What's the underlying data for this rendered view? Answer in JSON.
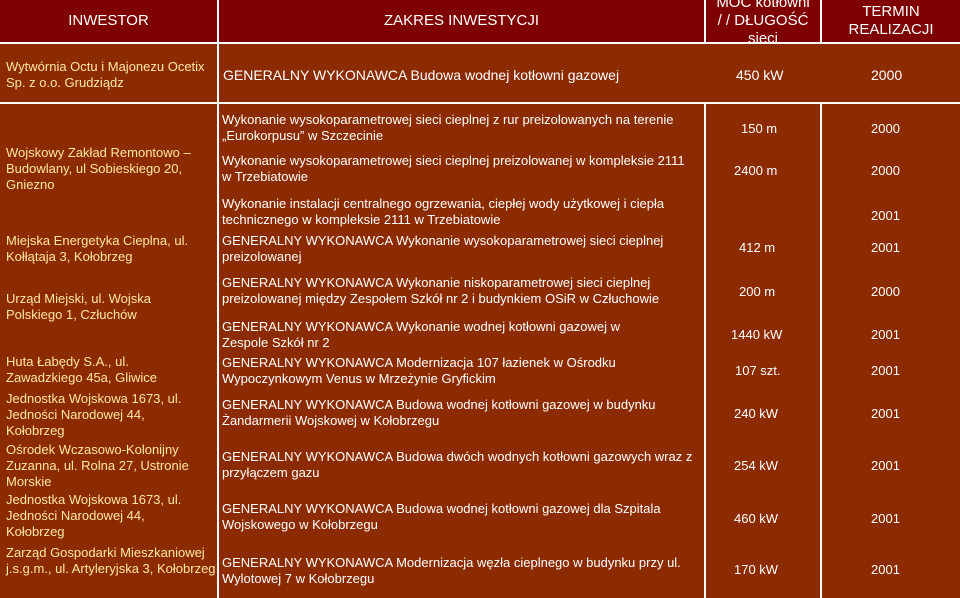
{
  "header": {
    "investor": "INWESTOR",
    "scope": "ZAKRES INWESTYCJI",
    "power_length": "MOC kotłowni / / DŁUGOŚĆ sieci",
    "date": "TERMIN REALIZACJI"
  },
  "top_row": {
    "investor": "Wytwórnia Octu i Majonezu Ocetix Sp. z o.o. Grudziądz",
    "scope": "GENERALNY WYKONAWCA Budowa wodnej kotłowni gazowej",
    "power": "450 kW",
    "year": "2000"
  },
  "investors": [
    "Wojskowy Zakład Remontowo – Budowlany, ul Sobieskiego 20, Gniezno",
    "Miejska Energetyka Cieplna, ul. Kołłątaja 3, Kołobrzeg",
    "Urząd Miejski, ul. Wojska Polskiego 1, Człuchów",
    "Huta Łabędy S.A., ul. Zawadzkiego 45a, Gliwice",
    "Jednostka Wojskowa 1673, ul. Jedności Narodowej 44, Kołobrzeg",
    "Ośrodek Wczasowo-Kolonijny Zuzanna, ul. Rolna 27, Ustronie Morskie",
    "Jednostka Wojskowa 1673, ul. Jedności Narodowej 44, Kołobrzeg",
    "Zarząd Gospodarki Mieszkaniowej j.s.g.m., ul. Artyleryjska 3, Kołobrzeg"
  ],
  "works": [
    "Wykonanie wysokoparametrowej sieci cieplnej z rur preizolowanych na terenie „Eurokorpusu” w Szczecinie",
    "Wykonanie wysokoparametrowej sieci cieplnej preizolowanej w kompleksie 2111 w Trzebiatowie",
    "Wykonanie instalacji centralnego ogrzewania, ciepłej wody użytkowej i ciepła technicznego w kompleksie 2111 w Trzebiatowie",
    "GENERALNY WYKONAWCA Wykonanie wysokoparametrowej sieci cieplnej preizolowanej",
    "GENERALNY WYKONAWCA Wykonanie niskoparametrowej sieci cieplnej preizolowanej między Zespołem Szkół nr 2 i budynkiem OSiR w Człuchowie",
    "GENERALNY WYKONAWCA Wykonanie wodnej kotłowni gazowej w Zespole Szkół nr 2",
    "GENERALNY WYKONAWCA Modernizacja 107 łazienek w Ośrodku Wypoczynkowym Venus w Mrzeżynie Gryfickim",
    "GENERALNY WYKONAWCA Budowa wodnej kotłowni gazowej w budynku Żandarmerii Wojskowej w Kołobrzegu",
    "GENERALNY WYKONAWCA Budowa dwóch wodnych kotłowni gazowych wraz z przyłączem gazu",
    "GENERALNY WYKONAWCA Budowa wodnej kotłowni gazowej dla Szpitala Wojskowego w Kołobrzegu",
    "GENERALNY WYKONAWCA Modernizacja węzła cieplnego w budynku przy ul. Wylotowej 7 w Kołobrzegu"
  ],
  "values": [
    {
      "power": "150 m",
      "year": "2000"
    },
    {
      "power": "2400 m",
      "year": "2000"
    },
    {
      "power": "",
      "year": "2001"
    },
    {
      "power": "412 m",
      "year": "2001"
    },
    {
      "power": "200 m",
      "year": "2000"
    },
    {
      "power": "1440 kW",
      "year": "2001"
    },
    {
      "power": "107 szt.",
      "year": "2001"
    },
    {
      "power": "240 kW",
      "year": "2001"
    },
    {
      "power": "254 kW",
      "year": "2001"
    },
    {
      "power": "460 kW",
      "year": "2001"
    },
    {
      "power": "170 kW",
      "year": "2001"
    }
  ]
}
